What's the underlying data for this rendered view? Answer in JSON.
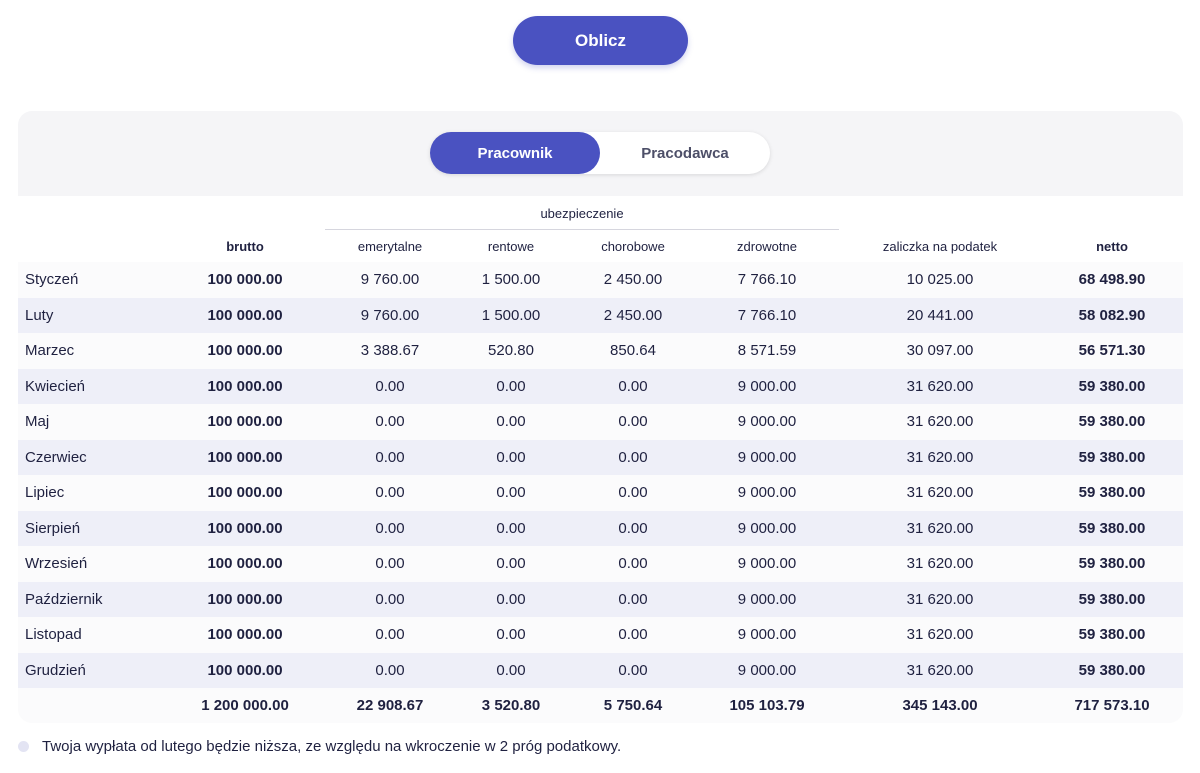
{
  "calculate_button": "Oblicz",
  "tabs": {
    "employee": "Pracownik",
    "employer": "Pracodawca",
    "active": "employee"
  },
  "table": {
    "group_header": "ubezpieczenie",
    "headers": {
      "gross": "brutto",
      "pension": "emerytalne",
      "disability": "rentowe",
      "sickness": "chorobowe",
      "health": "zdrowotne",
      "tax": "zaliczka na podatek",
      "net": "netto"
    },
    "rows": [
      {
        "month": "Styczeń",
        "gross": "100 000.00",
        "pension": "9 760.00",
        "disability": "1 500.00",
        "sickness": "2 450.00",
        "health": "7 766.10",
        "tax": "10 025.00",
        "net": "68 498.90"
      },
      {
        "month": "Luty",
        "gross": "100 000.00",
        "pension": "9 760.00",
        "disability": "1 500.00",
        "sickness": "2 450.00",
        "health": "7 766.10",
        "tax": "20 441.00",
        "net": "58 082.90"
      },
      {
        "month": "Marzec",
        "gross": "100 000.00",
        "pension": "3 388.67",
        "disability": "520.80",
        "sickness": "850.64",
        "health": "8 571.59",
        "tax": "30 097.00",
        "net": "56 571.30"
      },
      {
        "month": "Kwiecień",
        "gross": "100 000.00",
        "pension": "0.00",
        "disability": "0.00",
        "sickness": "0.00",
        "health": "9 000.00",
        "tax": "31 620.00",
        "net": "59 380.00"
      },
      {
        "month": "Maj",
        "gross": "100 000.00",
        "pension": "0.00",
        "disability": "0.00",
        "sickness": "0.00",
        "health": "9 000.00",
        "tax": "31 620.00",
        "net": "59 380.00"
      },
      {
        "month": "Czerwiec",
        "gross": "100 000.00",
        "pension": "0.00",
        "disability": "0.00",
        "sickness": "0.00",
        "health": "9 000.00",
        "tax": "31 620.00",
        "net": "59 380.00"
      },
      {
        "month": "Lipiec",
        "gross": "100 000.00",
        "pension": "0.00",
        "disability": "0.00",
        "sickness": "0.00",
        "health": "9 000.00",
        "tax": "31 620.00",
        "net": "59 380.00"
      },
      {
        "month": "Sierpień",
        "gross": "100 000.00",
        "pension": "0.00",
        "disability": "0.00",
        "sickness": "0.00",
        "health": "9 000.00",
        "tax": "31 620.00",
        "net": "59 380.00"
      },
      {
        "month": "Wrzesień",
        "gross": "100 000.00",
        "pension": "0.00",
        "disability": "0.00",
        "sickness": "0.00",
        "health": "9 000.00",
        "tax": "31 620.00",
        "net": "59 380.00"
      },
      {
        "month": "Październik",
        "gross": "100 000.00",
        "pension": "0.00",
        "disability": "0.00",
        "sickness": "0.00",
        "health": "9 000.00",
        "tax": "31 620.00",
        "net": "59 380.00"
      },
      {
        "month": "Listopad",
        "gross": "100 000.00",
        "pension": "0.00",
        "disability": "0.00",
        "sickness": "0.00",
        "health": "9 000.00",
        "tax": "31 620.00",
        "net": "59 380.00"
      },
      {
        "month": "Grudzień",
        "gross": "100 000.00",
        "pension": "0.00",
        "disability": "0.00",
        "sickness": "0.00",
        "health": "9 000.00",
        "tax": "31 620.00",
        "net": "59 380.00"
      }
    ],
    "totals": {
      "gross": "1 200 000.00",
      "pension": "22 908.67",
      "disability": "3 520.80",
      "sickness": "5 750.64",
      "health": "105 103.79",
      "tax": "345 143.00",
      "net": "717 573.10"
    }
  },
  "note": "Twoja wypłata od lutego będzie niższa, ze względu na wkroczenie w 2 próg podatkowy."
}
